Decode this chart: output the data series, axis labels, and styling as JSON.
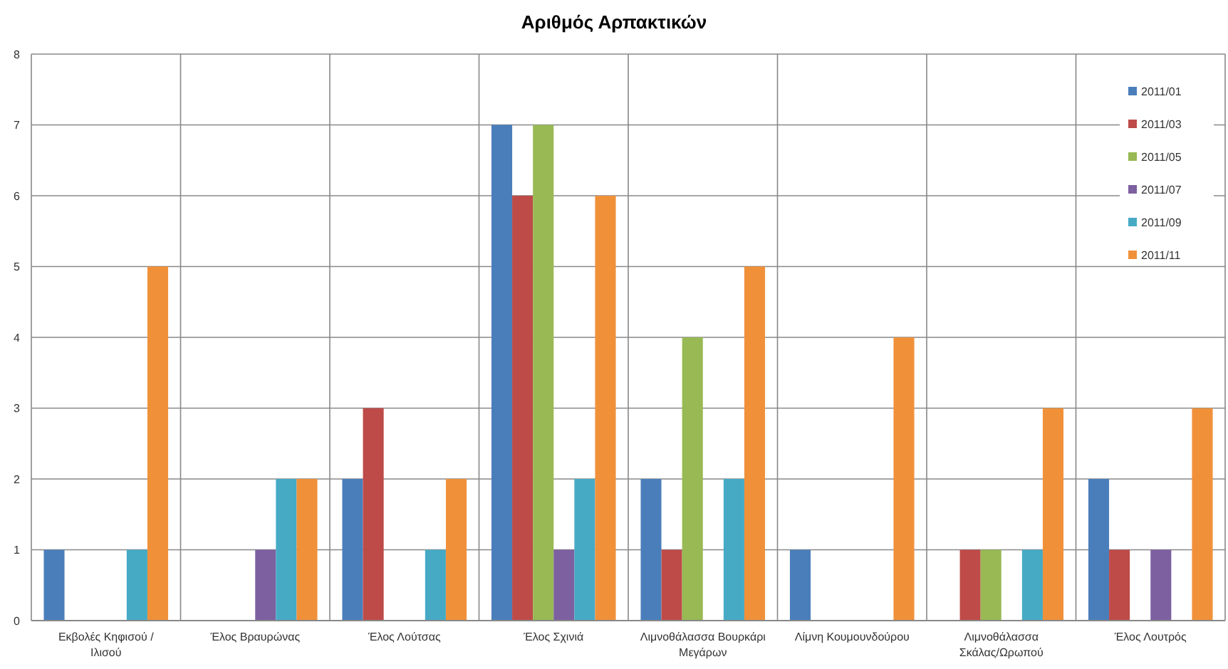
{
  "chart_data": {
    "type": "bar",
    "title": "Αριθμός Αρπακτικών",
    "categories": [
      "Εκβολές Κηφισού / Ιλισού",
      "Έλος Βραυρώνας",
      "Έλος Λούτσας",
      "Έλος Σχινιά",
      "Λιμνοθάλασσα Βουρκάρι Μεγάρων",
      "Λίμνη Κουμουνδούρου",
      "Λιμνοθάλασσα Σκάλας/Ωρωπού",
      "Έλος Λουτρός"
    ],
    "series": [
      {
        "name": "2011/01",
        "color": "#4a7ebb",
        "values": [
          1,
          0,
          2,
          7,
          2,
          1,
          0,
          2
        ]
      },
      {
        "name": "2011/03",
        "color": "#be4b48",
        "values": [
          0,
          0,
          3,
          6,
          1,
          0,
          1,
          1
        ]
      },
      {
        "name": "2011/05",
        "color": "#98b954",
        "values": [
          0,
          0,
          0,
          7,
          4,
          0,
          1,
          0
        ]
      },
      {
        "name": "2011/07",
        "color": "#7d60a0",
        "values": [
          0,
          1,
          0,
          1,
          0,
          0,
          0,
          1
        ]
      },
      {
        "name": "2011/09",
        "color": "#46aac5",
        "values": [
          1,
          2,
          1,
          2,
          2,
          0,
          1,
          0
        ]
      },
      {
        "name": "2011/11",
        "color": "#f0913a",
        "values": [
          5,
          2,
          2,
          6,
          5,
          4,
          3,
          3
        ]
      }
    ],
    "ylim": [
      0,
      8
    ],
    "yticks": [
      0,
      1,
      2,
      3,
      4,
      5,
      6,
      7,
      8
    ],
    "grid": true,
    "legend": "right"
  }
}
